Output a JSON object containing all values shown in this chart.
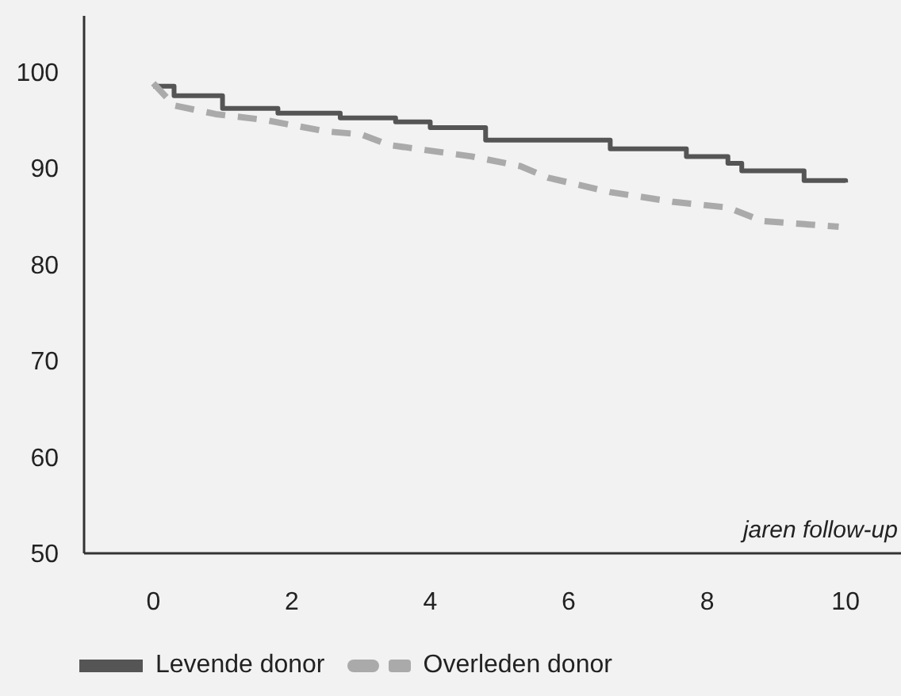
{
  "chart_data": {
    "type": "line",
    "xlabel": "jaren follow-up",
    "xlim": [
      -1,
      10.8
    ],
    "xticks": [
      0,
      2,
      4,
      6,
      8,
      10
    ],
    "ylim": [
      50,
      105.8
    ],
    "yticks": [
      50,
      60,
      70,
      80,
      90,
      100
    ],
    "grid": false,
    "legend": "bottom",
    "marker": "none",
    "series": [
      {
        "name": "Levende donor",
        "type": "step",
        "color": "#555555",
        "line_style": "solid",
        "x": [
          0,
          0.3,
          1.0,
          1.8,
          2.7,
          3.5,
          4.0,
          4.8,
          6.6,
          7.7,
          8.3,
          8.5,
          9.4,
          10.0
        ],
        "values": [
          98.5,
          97.5,
          96.2,
          95.7,
          95.2,
          94.8,
          94.2,
          92.9,
          92.0,
          91.2,
          90.5,
          89.7,
          88.7,
          88.5
        ]
      },
      {
        "name": "Overleden donor",
        "type": "line",
        "color": "#aaaaaa",
        "line_style": "dashed",
        "x": [
          0,
          0.3,
          0.9,
          1.6,
          2.5,
          3.0,
          3.4,
          4.6,
          5.3,
          5.7,
          6.6,
          7.5,
          8.3,
          8.8,
          9.9
        ],
        "values": [
          98.8,
          96.5,
          95.6,
          95.0,
          93.8,
          93.5,
          92.4,
          91.2,
          90.2,
          89.0,
          87.5,
          86.5,
          85.9,
          84.5,
          83.9
        ]
      }
    ]
  }
}
